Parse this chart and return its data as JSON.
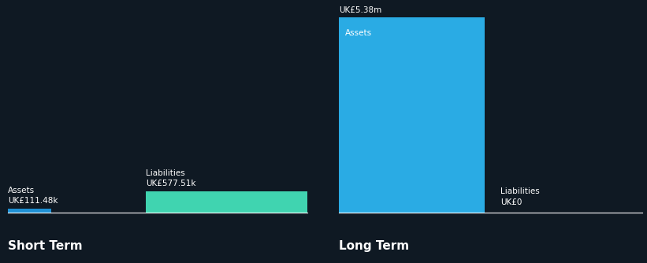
{
  "background_color": "#0f1923",
  "text_color": "#ffffff",
  "sections": [
    "Short Term",
    "Long Term"
  ],
  "short_term": {
    "assets_value": 111.48,
    "assets_label": "Assets",
    "assets_value_label": "UK£111.48k",
    "assets_color": "#1e90d4",
    "liabilities_value": 577.51,
    "liabilities_label": "Liabilities",
    "liabilities_value_label": "UK£577.51k",
    "liabilities_color": "#40d4b0"
  },
  "long_term": {
    "assets_value": 5380.0,
    "assets_label": "Assets",
    "assets_value_label": "UK£5.38m",
    "assets_color": "#2aabe4",
    "liabilities_value": 0.0,
    "liabilities_label": "Liabilities",
    "liabilities_value_label": "UK£0",
    "liabilities_color": "#2aabe4"
  },
  "label_fontsize": 7.5,
  "section_fontsize": 11,
  "value_fontsize": 7.5
}
